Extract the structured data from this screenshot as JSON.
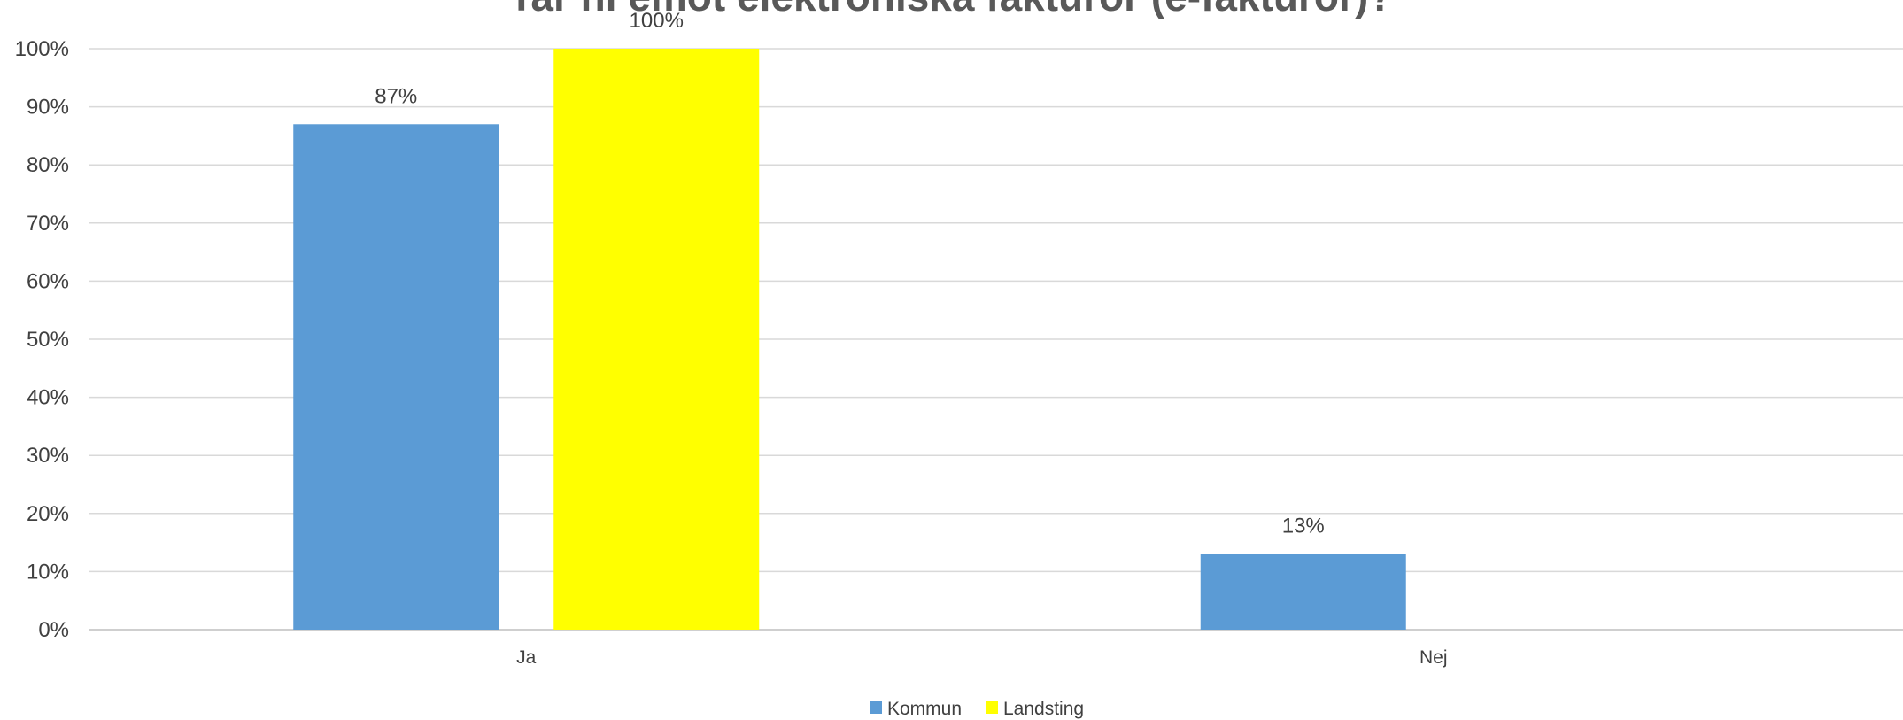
{
  "chart_data": {
    "type": "bar",
    "title": "Tar ni emot elektroniska fakturor (e-fakturor)?",
    "categories": [
      "Ja",
      "Nej"
    ],
    "series": [
      {
        "name": "Kommun",
        "values": [
          87,
          13
        ],
        "labels": [
          "87%",
          "13%"
        ],
        "color": "#5B9BD5"
      },
      {
        "name": "Landsting",
        "values": [
          100,
          0
        ],
        "labels": [
          "100%",
          ""
        ],
        "color": "#FFFF00"
      }
    ],
    "ylim": [
      0,
      100
    ],
    "yticks": [
      "0%",
      "10%",
      "20%",
      "30%",
      "40%",
      "50%",
      "60%",
      "70%",
      "80%",
      "90%",
      "100%"
    ],
    "xlabel": "",
    "ylabel": "",
    "grid": true,
    "legend_position": "bottom"
  }
}
